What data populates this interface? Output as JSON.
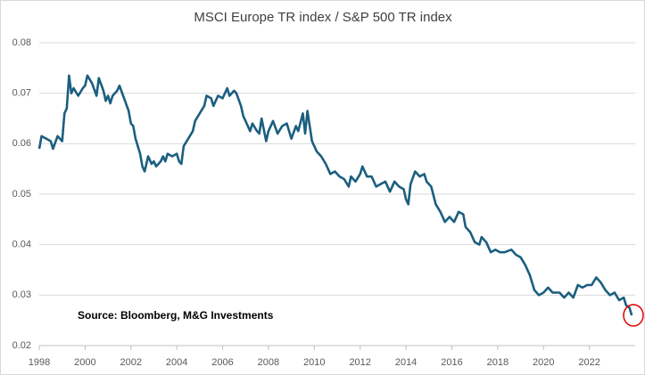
{
  "chart_data": {
    "type": "line",
    "title": "MSCI Europe TR index / S&P 500 TR index",
    "annotation": "Source: Bloomberg, M&G Investments",
    "color": "#1b5f7f",
    "grid": true,
    "xlim": [
      1998,
      2024
    ],
    "xticks": [
      1998,
      2000,
      2002,
      2004,
      2006,
      2008,
      2010,
      2012,
      2014,
      2016,
      2018,
      2020,
      2022
    ],
    "ylim": [
      0.02,
      0.08
    ],
    "yticks": [
      0.02,
      0.03,
      0.04,
      0.05,
      0.06,
      0.07,
      0.08
    ],
    "x": [
      1998.0,
      1998.1,
      1998.3,
      1998.5,
      1998.6,
      1998.8,
      1999.0,
      1999.1,
      1999.2,
      1999.3,
      1999.4,
      1999.5,
      1999.7,
      1999.9,
      2000.0,
      2000.1,
      2000.3,
      2000.5,
      2000.6,
      2000.8,
      2000.9,
      2001.0,
      2001.1,
      2001.2,
      2001.4,
      2001.5,
      2001.7,
      2001.9,
      2002.0,
      2002.1,
      2002.2,
      2002.3,
      2002.4,
      2002.5,
      2002.6,
      2002.75,
      2002.9,
      2003.0,
      2003.1,
      2003.3,
      2003.4,
      2003.5,
      2003.6,
      2003.8,
      2004.0,
      2004.1,
      2004.2,
      2004.3,
      2004.5,
      2004.7,
      2004.8,
      2005.0,
      2005.2,
      2005.3,
      2005.5,
      2005.6,
      2005.8,
      2006.0,
      2006.2,
      2006.3,
      2006.5,
      2006.6,
      2006.8,
      2006.9,
      2007.0,
      2007.2,
      2007.3,
      2007.5,
      2007.6,
      2007.7,
      2007.9,
      2008.0,
      2008.2,
      2008.4,
      2008.6,
      2008.8,
      2009.0,
      2009.2,
      2009.3,
      2009.5,
      2009.6,
      2009.7,
      2009.9,
      2010.1,
      2010.3,
      2010.5,
      2010.7,
      2010.9,
      2011.1,
      2011.3,
      2011.5,
      2011.6,
      2011.8,
      2012.0,
      2012.1,
      2012.3,
      2012.5,
      2012.7,
      2012.9,
      2013.1,
      2013.3,
      2013.5,
      2013.7,
      2013.9,
      2014.0,
      2014.1,
      2014.2,
      2014.4,
      2014.6,
      2014.8,
      2014.9,
      2015.1,
      2015.3,
      2015.5,
      2015.7,
      2015.9,
      2016.1,
      2016.3,
      2016.5,
      2016.6,
      2016.8,
      2017.0,
      2017.2,
      2017.3,
      2017.5,
      2017.7,
      2017.9,
      2018.1,
      2018.3,
      2018.6,
      2018.8,
      2019.0,
      2019.2,
      2019.4,
      2019.6,
      2019.8,
      2020.0,
      2020.2,
      2020.4,
      2020.7,
      2020.9,
      2021.1,
      2021.3,
      2021.5,
      2021.7,
      2021.9,
      2022.1,
      2022.3,
      2022.5,
      2022.7,
      2022.9,
      2023.1,
      2023.3,
      2023.5,
      2023.6,
      2023.75,
      2023.85
    ],
    "values": [
      0.059,
      0.0615,
      0.061,
      0.0605,
      0.059,
      0.0615,
      0.0605,
      0.066,
      0.067,
      0.0735,
      0.07,
      0.071,
      0.0695,
      0.071,
      0.0715,
      0.0735,
      0.072,
      0.0695,
      0.073,
      0.0705,
      0.0685,
      0.0695,
      0.068,
      0.0695,
      0.0705,
      0.0715,
      0.069,
      0.0665,
      0.064,
      0.0635,
      0.061,
      0.0595,
      0.058,
      0.0555,
      0.0545,
      0.0575,
      0.056,
      0.0565,
      0.0555,
      0.0565,
      0.0575,
      0.0565,
      0.058,
      0.0575,
      0.058,
      0.0565,
      0.056,
      0.0595,
      0.061,
      0.0625,
      0.0645,
      0.066,
      0.0675,
      0.0695,
      0.069,
      0.0675,
      0.0695,
      0.069,
      0.071,
      0.0695,
      0.0705,
      0.07,
      0.0675,
      0.0655,
      0.0645,
      0.0625,
      0.064,
      0.0625,
      0.062,
      0.065,
      0.0605,
      0.0625,
      0.0645,
      0.062,
      0.0635,
      0.064,
      0.061,
      0.0635,
      0.0625,
      0.066,
      0.062,
      0.0665,
      0.0605,
      0.0585,
      0.0575,
      0.056,
      0.054,
      0.0545,
      0.0535,
      0.053,
      0.0515,
      0.0535,
      0.0525,
      0.054,
      0.0555,
      0.0535,
      0.0535,
      0.0515,
      0.052,
      0.0525,
      0.0505,
      0.0525,
      0.0515,
      0.051,
      0.049,
      0.048,
      0.052,
      0.0545,
      0.0535,
      0.054,
      0.0525,
      0.0515,
      0.048,
      0.0465,
      0.0445,
      0.0455,
      0.0445,
      0.0465,
      0.046,
      0.0435,
      0.0425,
      0.0405,
      0.04,
      0.0415,
      0.0405,
      0.0385,
      0.039,
      0.0385,
      0.0385,
      0.039,
      0.038,
      0.0375,
      0.036,
      0.034,
      0.031,
      0.03,
      0.0305,
      0.0315,
      0.0305,
      0.0305,
      0.0295,
      0.0305,
      0.0295,
      0.032,
      0.0315,
      0.032,
      0.032,
      0.0335,
      0.0325,
      0.031,
      0.03,
      0.0305,
      0.029,
      0.0295,
      0.028,
      0.0275,
      0.026
    ]
  }
}
